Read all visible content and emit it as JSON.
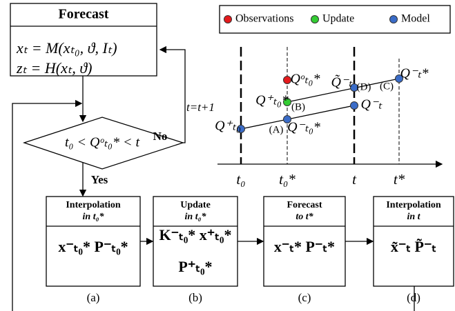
{
  "forecast": {
    "title": "Forecast",
    "equations": [
      "xₜ = M(xₜ₀, ϑ, Iₜ)",
      "zₜ = H(xₜ, ϑ)"
    ]
  },
  "decision": {
    "condition": "t₀ < Qᵒₜ₀* < t",
    "no": "No",
    "yes": "Yes",
    "loop": "t=t+1"
  },
  "legend": [
    {
      "label": "Observations",
      "color": "#e41a1c"
    },
    {
      "label": "Update",
      "color": "#33cc33"
    },
    {
      "label": "Model",
      "color": "#3a6cc8"
    }
  ],
  "timeline": {
    "ticks": [
      "t₀",
      "t₀*",
      "t",
      "t*"
    ],
    "labels": [
      "Q⁺ₜ₀",
      "(A)",
      "Q⁻ₜ₀*",
      "Q⁺ₜ₀*",
      "(B)",
      "Qᵒₜ₀*",
      "Q⁻ₜ",
      "Q̃⁻ₜ",
      "(D)",
      "(C)",
      "Q⁻ₜ*"
    ]
  },
  "steps": [
    {
      "title": [
        "Interpolation",
        "in t₀*"
      ],
      "content": [
        "x⁻ₜ₀*   P⁻ₜ₀*"
      ],
      "caption": "(a)"
    },
    {
      "title": [
        "Update",
        "in t₀*"
      ],
      "content": [
        "K⁻ₜ₀*   x⁺ₜ₀*",
        "P⁺ₜ₀*"
      ],
      "caption": "(b)"
    },
    {
      "title": [
        "Forecast",
        "to t*"
      ],
      "content": [
        "x⁻ₜ*   P⁻ₜ*"
      ],
      "caption": "(c)"
    },
    {
      "title": [
        "Interpolation",
        "in t"
      ],
      "content": [
        "x̃⁻ₜ   P̃⁻ₜ"
      ],
      "caption": "(d)"
    }
  ]
}
